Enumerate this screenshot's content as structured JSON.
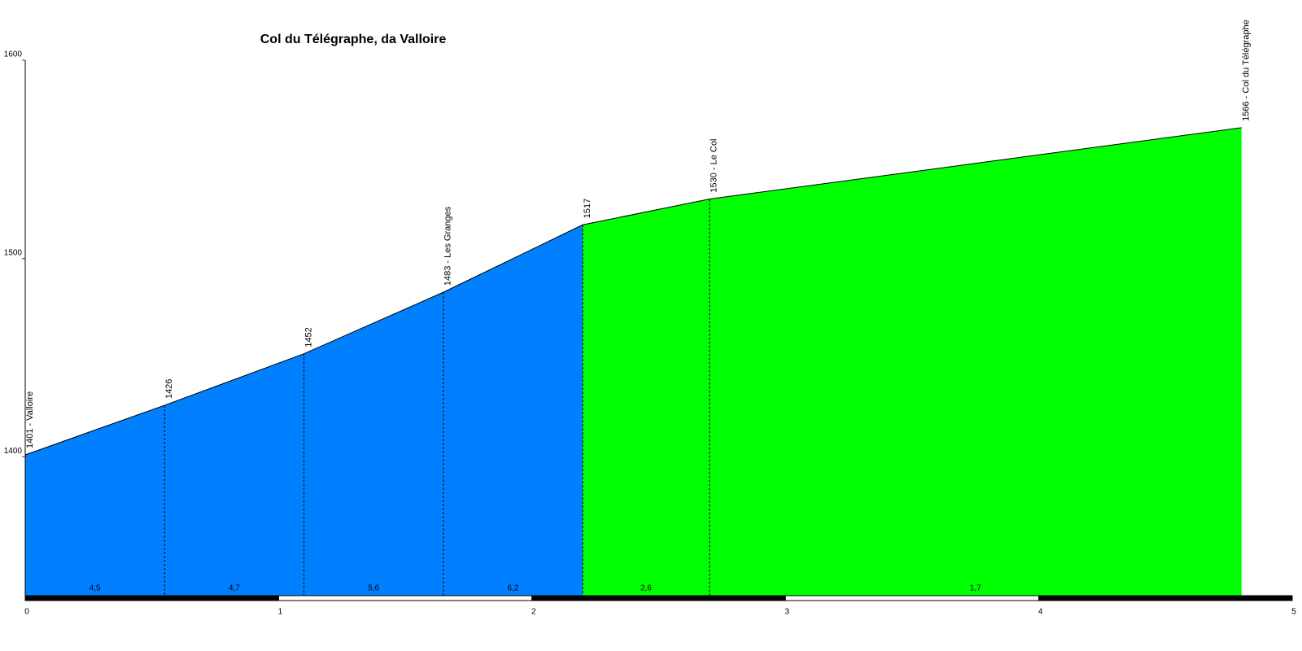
{
  "chart_data": {
    "type": "profile",
    "title": "Col du Télégraphe, da Valloire",
    "x": [
      0,
      0.55,
      1.1,
      1.65,
      2.2,
      2.7,
      4.8
    ],
    "values": [
      1401,
      1426,
      1452,
      1483,
      1517,
      1530,
      1566
    ],
    "value_labels": [
      "1401 - Valloire",
      "1426",
      "1452",
      "1483 - Les Granges",
      "1517",
      "1530 - Le Col",
      "1566 - Col du Télégraphe"
    ],
    "gradients": [
      4.5,
      4.7,
      5.6,
      6.2,
      2.6,
      1.7
    ],
    "gradient_labels": [
      "4,5",
      "4,7",
      "5,6",
      "6,2",
      "2,6",
      "1,7"
    ],
    "segment_colors": [
      "#0080ff",
      "#0080ff",
      "#0080ff",
      "#0080ff",
      "#00ff00",
      "#00ff00"
    ],
    "xlim": [
      0,
      5
    ],
    "xticks": [
      0,
      1,
      2,
      3,
      4,
      5
    ],
    "ylim": [
      1330,
      1600
    ],
    "yticks": [
      1400,
      1500,
      1600
    ]
  }
}
